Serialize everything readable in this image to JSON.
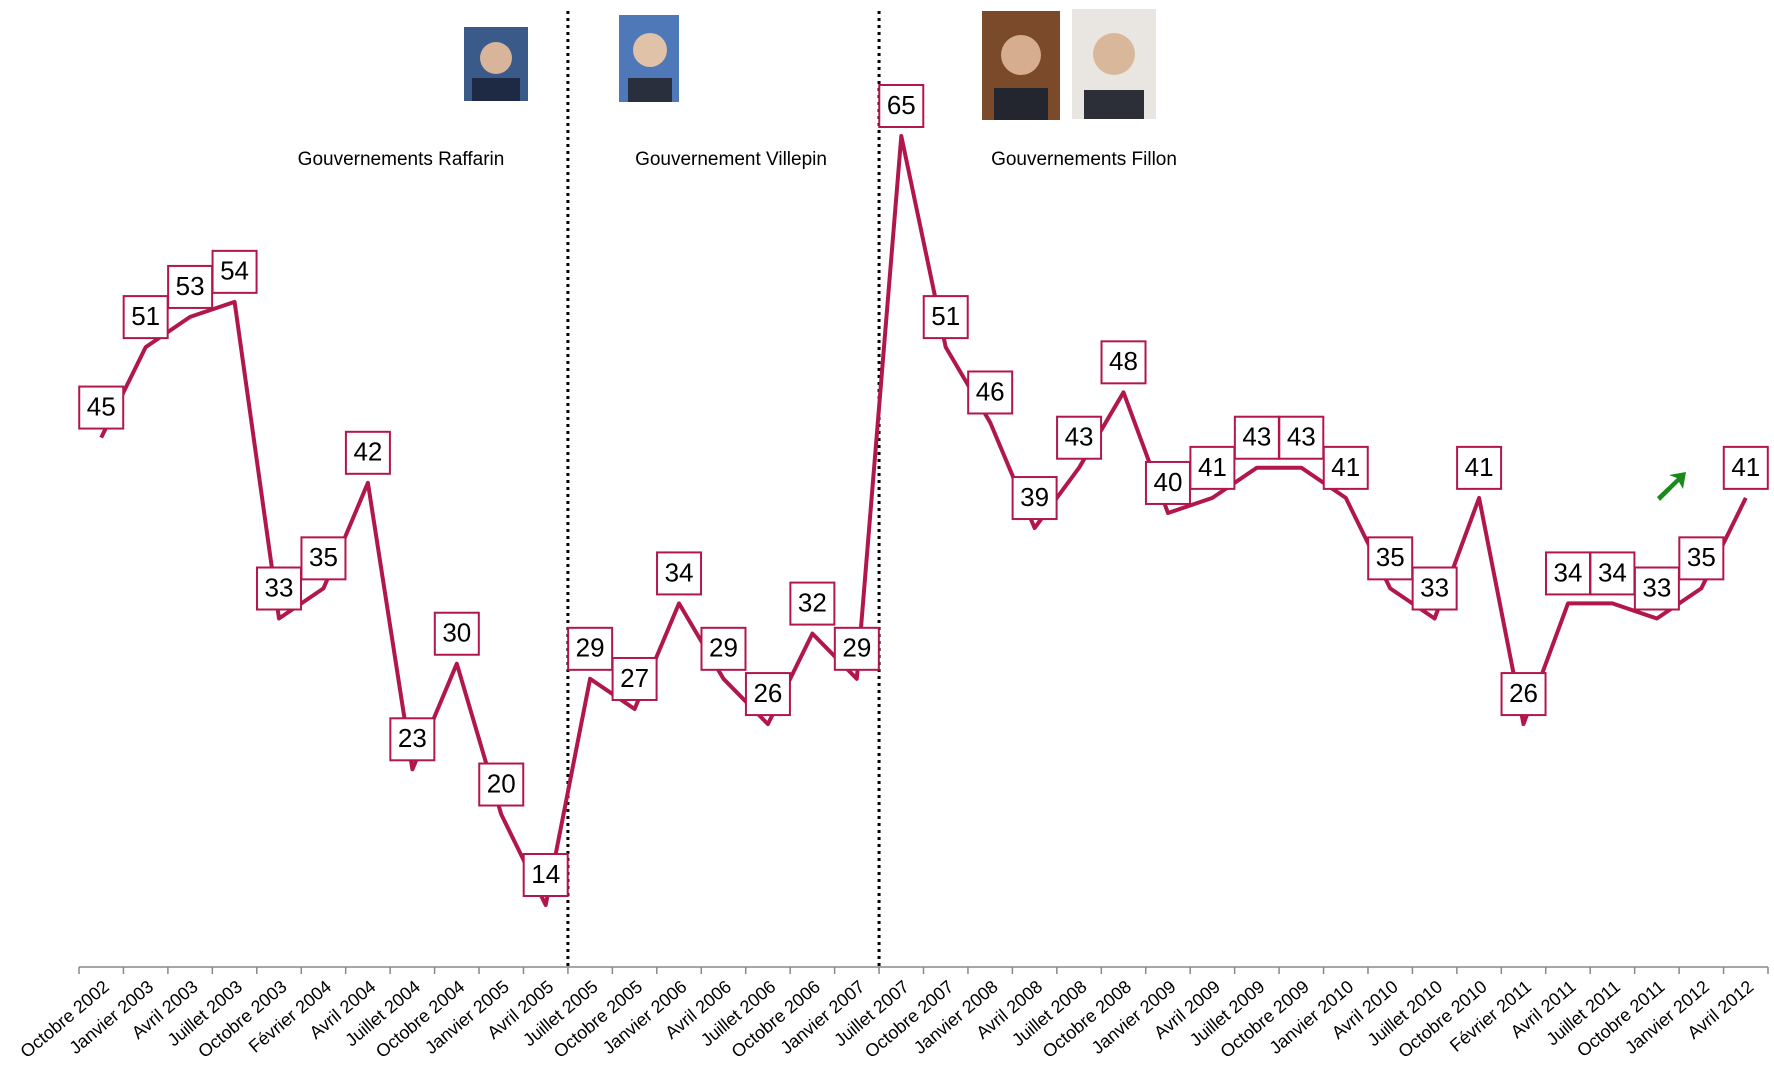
{
  "chart_data": {
    "type": "line",
    "categories": [
      "Octobre 2002",
      "Janvier 2003",
      "Avril 2003",
      "Juillet 2003",
      "Octobre 2003",
      "Février 2004",
      "Avril 2004",
      "Juillet 2004",
      "Octobre 2004",
      "Janvier 2005",
      "Avril 2005",
      "Juillet 2005",
      "Octobre 2005",
      "Janvier 2006",
      "Avril 2006",
      "Juillet 2006",
      "Octobre 2006",
      "Janvier 2007",
      "Juillet 2007",
      "Octobre 2007",
      "Janvier 2008",
      "Avril 2008",
      "Juillet 2008",
      "Octobre 2008",
      "Janvier 2009",
      "Avril 2009",
      "Juillet 2009",
      "Octobre 2009",
      "Janvier 2010",
      "Avril 2010",
      "Juillet 2010",
      "Octobre 2010",
      "Février 2011",
      "Avril 2011",
      "Juillet 2011",
      "Octobre 2011",
      "Janvier 2012",
      "Avril 2012"
    ],
    "values": [
      45,
      51,
      53,
      54,
      33,
      35,
      42,
      23,
      30,
      20,
      14,
      29,
      27,
      34,
      29,
      26,
      32,
      29,
      65,
      51,
      46,
      39,
      43,
      48,
      40,
      41,
      43,
      43,
      41,
      35,
      33,
      41,
      26,
      34,
      34,
      33,
      35,
      41
    ],
    "color": "#b2174b",
    "annotations": [
      "Gouvernements Raffarin",
      "Gouvernement Villepin",
      "Gouvernements Fillon"
    ]
  }
}
